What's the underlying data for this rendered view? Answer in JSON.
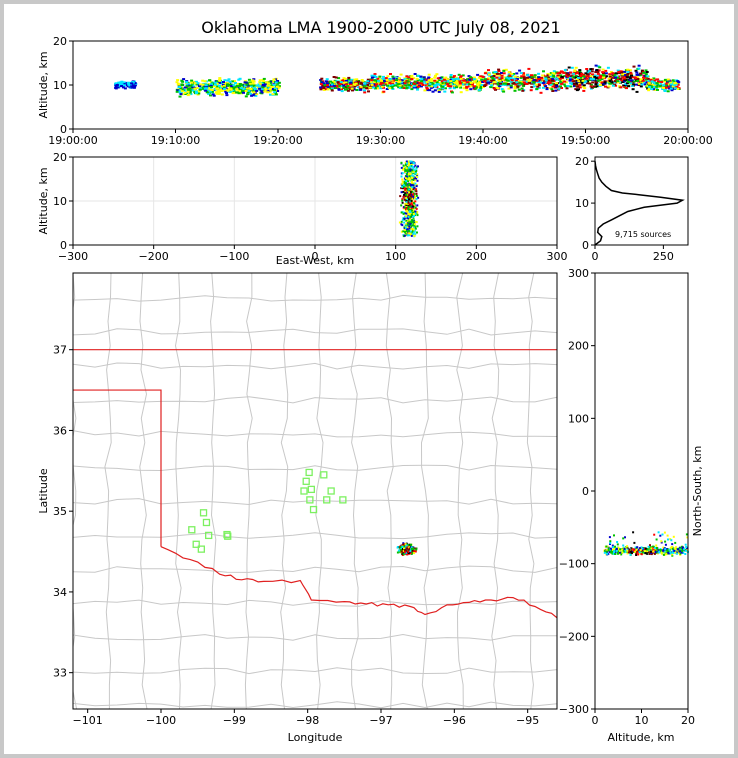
{
  "title": "Oklahoma LMA 1900-2000 UTC July 08, 2021",
  "colors": {
    "ok_border": "#e02020",
    "counties": "#c8c8c8",
    "stations": "#7cf060",
    "axis": "#000000",
    "grid": "#e6e6e6",
    "density": [
      "#0000cc",
      "#00e5ff",
      "#00c000",
      "#ffff00",
      "#ff0000",
      "#800000",
      "#000000"
    ]
  },
  "chart_data": [
    {
      "name": "altitude-time",
      "type": "scatter",
      "ylabel": "Altitude, km",
      "xlabel": "",
      "xlim_minutes": [
        0,
        60
      ],
      "ylim": [
        0,
        20
      ],
      "x_ticks": [
        "19:00:00",
        "19:10:00",
        "19:20:00",
        "19:30:00",
        "19:40:00",
        "19:50:00",
        "20:00:00"
      ],
      "y_ticks": [
        0,
        10,
        20
      ],
      "clusters": [
        {
          "t": [
            4,
            6
          ],
          "z": [
            9,
            11
          ],
          "level": 1
        },
        {
          "t": [
            10,
            20
          ],
          "z": [
            7,
            12
          ],
          "level": 3
        },
        {
          "t": [
            24,
            29
          ],
          "z": [
            8,
            12
          ],
          "level": 5
        },
        {
          "t": [
            29,
            40
          ],
          "z": [
            8,
            13
          ],
          "level": 4
        },
        {
          "t": [
            40,
            47
          ],
          "z": [
            8,
            14
          ],
          "level": 5
        },
        {
          "t": [
            47,
            56
          ],
          "z": [
            8,
            15
          ],
          "level": 6
        },
        {
          "t": [
            56,
            59
          ],
          "z": [
            8,
            12
          ],
          "level": 4
        }
      ]
    },
    {
      "name": "altitude-eastwest",
      "type": "scatter",
      "xlabel": "East-West, km",
      "ylabel": "Altitude, km",
      "xlim": [
        -300,
        300
      ],
      "ylim": [
        0,
        20
      ],
      "x_ticks": [
        -300,
        -200,
        -100,
        0,
        100,
        200,
        300
      ],
      "y_ticks": [
        0,
        10,
        20
      ],
      "cluster": {
        "x": [
          104,
          130
        ],
        "z": [
          2,
          19
        ]
      }
    },
    {
      "name": "altitude-histogram",
      "type": "line",
      "xlim": [
        0,
        340
      ],
      "ylim": [
        0,
        21
      ],
      "x_ticks": [
        0,
        250
      ],
      "y_ticks": [
        0,
        10,
        20
      ],
      "annotation": "9,715 sources",
      "profile": [
        [
          0,
          0
        ],
        [
          20,
          1
        ],
        [
          25,
          2
        ],
        [
          10,
          3
        ],
        [
          12,
          4
        ],
        [
          30,
          5
        ],
        [
          60,
          6
        ],
        [
          90,
          7
        ],
        [
          120,
          8
        ],
        [
          180,
          9
        ],
        [
          300,
          10
        ],
        [
          320,
          10.7
        ],
        [
          240,
          11.4
        ],
        [
          160,
          12
        ],
        [
          100,
          12.4
        ],
        [
          60,
          13
        ],
        [
          40,
          14
        ],
        [
          25,
          15
        ],
        [
          15,
          16
        ],
        [
          10,
          17
        ],
        [
          5,
          18
        ],
        [
          2,
          19
        ],
        [
          0,
          20
        ]
      ]
    },
    {
      "name": "plan-view-map",
      "type": "scatter",
      "xlabel": "Longitude",
      "ylabel": "Latitude",
      "xlim": [
        -101.2,
        -94.6
      ],
      "ylim": [
        32.55,
        37.95
      ],
      "x_ticks": [
        -101,
        -100,
        -99,
        -98,
        -97,
        -96,
        -95
      ],
      "y_ticks": [
        33,
        34,
        35,
        36,
        37
      ],
      "stations": [
        [
          -99.58,
          34.77
        ],
        [
          -99.42,
          34.98
        ],
        [
          -99.38,
          34.86
        ],
        [
          -99.52,
          34.59
        ],
        [
          -99.45,
          34.53
        ],
        [
          -99.35,
          34.7
        ],
        [
          -99.1,
          34.71
        ],
        [
          -99.09,
          34.69
        ],
        [
          -97.98,
          35.48
        ],
        [
          -98.02,
          35.37
        ],
        [
          -97.95,
          35.27
        ],
        [
          -98.05,
          35.25
        ],
        [
          -97.78,
          35.45
        ],
        [
          -97.68,
          35.25
        ],
        [
          -97.74,
          35.14
        ],
        [
          -97.97,
          35.14
        ],
        [
          -97.92,
          35.02
        ],
        [
          -97.52,
          35.14
        ]
      ],
      "lightning": {
        "lon": [
          -96.8,
          -96.5
        ],
        "lat": [
          34.44,
          34.62
        ]
      }
    },
    {
      "name": "northsouth-altitude",
      "type": "scatter",
      "xlabel": "Altitude, km",
      "ylabel": "North-South, km",
      "xlim": [
        0,
        20
      ],
      "ylim": [
        -300,
        300
      ],
      "x_ticks": [
        0,
        10,
        20
      ],
      "y_ticks": [
        -300,
        -200,
        -100,
        0,
        100,
        200,
        300
      ],
      "cluster": {
        "z": [
          2,
          20
        ],
        "y": [
          -92,
          -52
        ]
      }
    }
  ]
}
